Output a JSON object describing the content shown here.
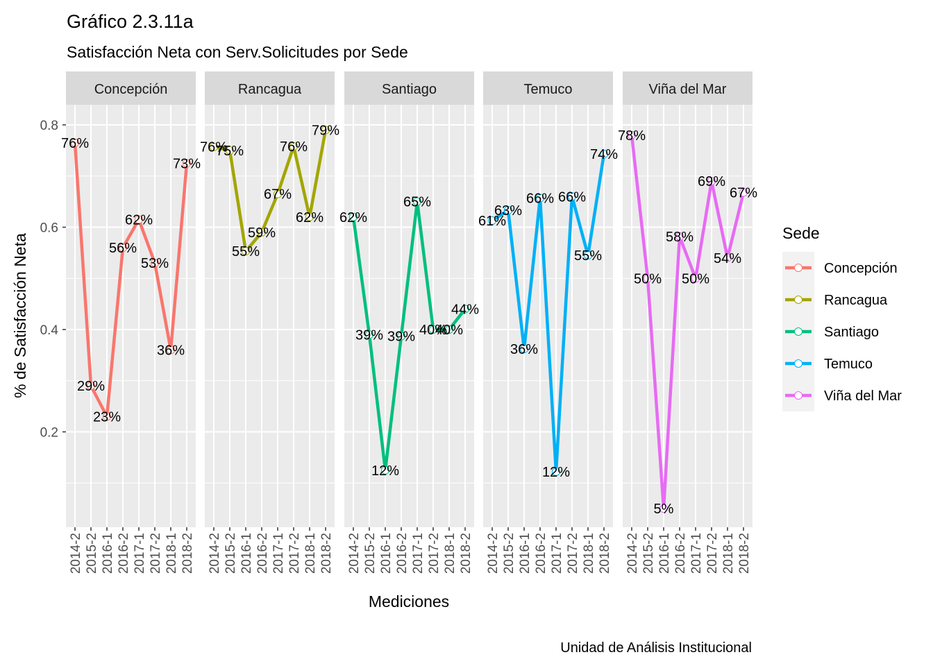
{
  "chart_data": {
    "type": "line",
    "title": "Gráfico 2.3.11a",
    "subtitle": "Satisfacción Neta con Serv.Solicitudes por Sede",
    "xlabel": "Mediciones",
    "ylabel": "% de Satisfacción Neta",
    "caption": "Unidad de Análisis Institucional",
    "legend_title": "Sede",
    "legend_position": "right",
    "grid": true,
    "ylim": [
      0.02,
      0.82
    ],
    "yticks": [
      0.2,
      0.4,
      0.6,
      0.8
    ],
    "ytick_labels": [
      "0.2",
      "0.4",
      "0.6",
      "0.8"
    ],
    "categories": [
      "2014-2",
      "2015-2",
      "2016-1",
      "2016-2",
      "2017-1",
      "2017-2",
      "2018-1",
      "2018-2"
    ],
    "series": [
      {
        "name": "Concepción",
        "color": "#F8766D",
        "values": [
          0.765,
          0.29,
          0.23,
          0.56,
          0.615,
          0.53,
          0.36,
          0.725
        ],
        "labels": [
          "76%",
          "29%",
          "23%",
          "56%",
          "62%",
          "53%",
          "36%",
          "73%"
        ]
      },
      {
        "name": "Rancagua",
        "color": "#A3A500",
        "values": [
          0.757,
          0.75,
          0.553,
          0.59,
          0.665,
          0.758,
          0.62,
          0.79
        ],
        "labels": [
          "76%",
          "75%",
          "55%",
          "59%",
          "67%",
          "76%",
          "62%",
          "79%"
        ]
      },
      {
        "name": "Santiago",
        "color": "#00BF7D",
        "values": [
          0.62,
          0.39,
          0.125,
          0.387,
          0.65,
          0.4,
          0.4,
          0.44
        ],
        "labels": [
          "62%",
          "39%",
          "12%",
          "39%",
          "65%",
          "40%",
          "40%",
          "44%"
        ]
      },
      {
        "name": "Temuco",
        "color": "#00B0F6",
        "values": [
          0.613,
          0.633,
          0.362,
          0.657,
          0.122,
          0.66,
          0.545,
          0.743
        ],
        "labels": [
          "61%",
          "63%",
          "36%",
          "66%",
          "12%",
          "66%",
          "55%",
          "74%"
        ]
      },
      {
        "name": "Viña del Mar",
        "color": "#E76BF3",
        "values": [
          0.78,
          0.5,
          0.05,
          0.582,
          0.5,
          0.69,
          0.54,
          0.668
        ],
        "labels": [
          "78%",
          "50%",
          "5%",
          "58%",
          "50%",
          "69%",
          "54%",
          "67%"
        ]
      }
    ]
  }
}
